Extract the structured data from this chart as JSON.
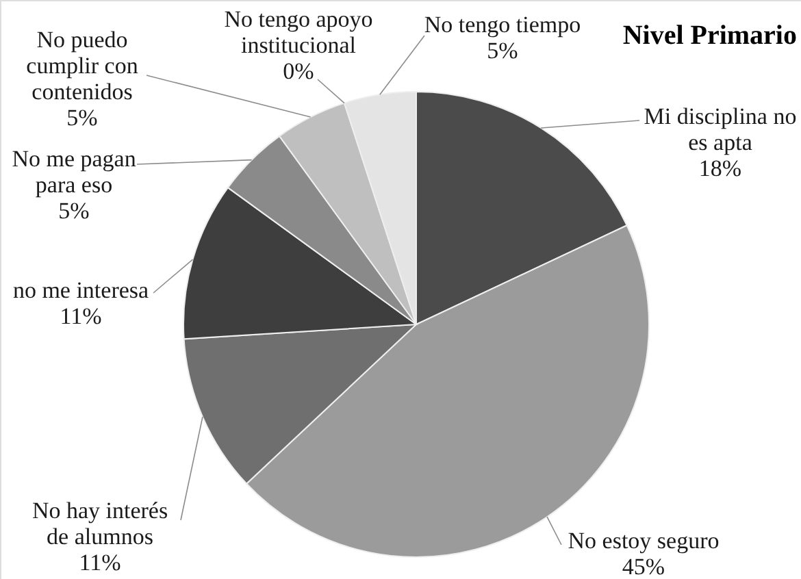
{
  "chart_data": {
    "type": "pie",
    "title": "Nivel Primario",
    "categories": [
      "Mi disciplina no es apta",
      "No estoy seguro",
      "No hay interés de alumnos",
      "no me interesa",
      "No me pagan para eso",
      "No puedo cumplir con contenidos",
      "No tengo apoyo institucional",
      "No tengo tiempo"
    ],
    "values": [
      18,
      45,
      11,
      11,
      5,
      5,
      0,
      5
    ],
    "colors": [
      "#4b4b4b",
      "#9b9b9b",
      "#6f6f6f",
      "#3e3e3e",
      "#8a8a8a",
      "#bfbfbf",
      "#a3a3a3",
      "#e4e4e4"
    ],
    "value_labels": [
      "18%",
      "45%",
      "11%",
      "11%",
      "5%",
      "5%",
      "0%",
      "5%"
    ]
  }
}
